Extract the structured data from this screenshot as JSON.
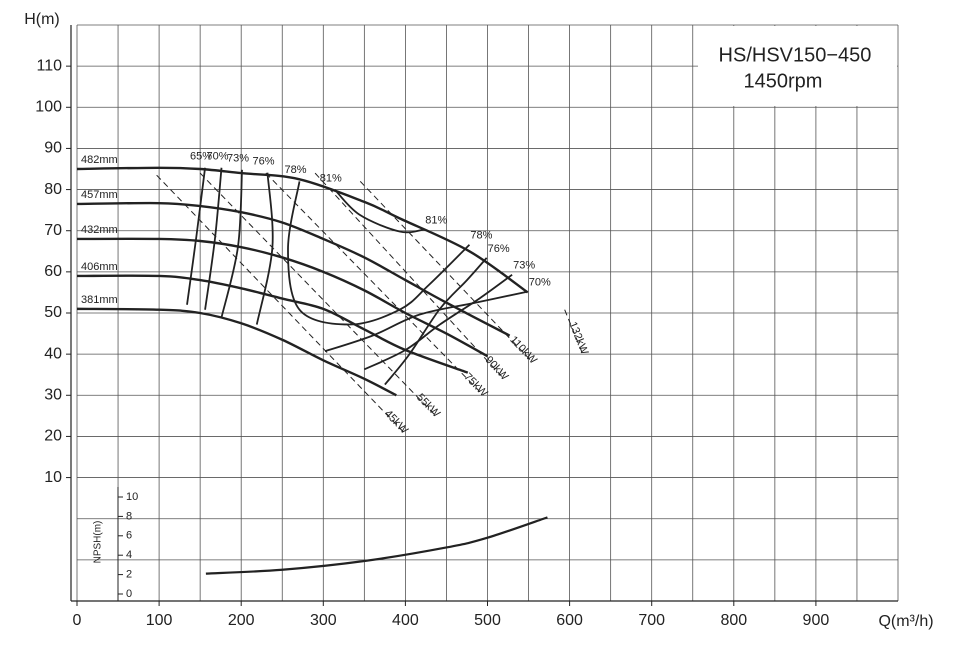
{
  "chart_data": {
    "type": "line",
    "title": "HS/HSV150−450",
    "subtitle": "1450rpm",
    "x_label": "Q(m³/h)",
    "y_label": "H(m)",
    "xlim": [
      0,
      1000
    ],
    "xticks": [
      0,
      100,
      200,
      300,
      400,
      500,
      600,
      700,
      800,
      900
    ],
    "ylim": [
      -20,
      120
    ],
    "yticks": [
      10,
      20,
      30,
      40,
      50,
      60,
      70,
      80,
      90,
      100,
      110
    ],
    "xgrid": [
      0,
      50,
      100,
      150,
      200,
      250,
      300,
      350,
      400,
      450,
      500,
      550,
      600,
      650,
      700,
      750,
      800,
      850,
      900,
      950,
      1000
    ],
    "ygrid": [
      -20,
      -10,
      0,
      10,
      20,
      30,
      40,
      50,
      60,
      70,
      80,
      90,
      100,
      110,
      120
    ],
    "color": "#222222",
    "grid_color": "#555555",
    "series": [
      {
        "name": "482mm",
        "x": [
          0,
          100,
          150,
          200,
          271,
          350,
          393,
          478,
          549
        ],
        "values": [
          85,
          85.3,
          85,
          84,
          82.5,
          77,
          73,
          65,
          55
        ]
      },
      {
        "name": "457mm",
        "x": [
          0,
          100,
          150,
          200,
          250,
          300,
          350,
          400,
          450,
          527
        ],
        "values": [
          76.5,
          76.7,
          76,
          74.5,
          72,
          68,
          63.5,
          58,
          52.5,
          44.5
        ]
      },
      {
        "name": "432mm",
        "x": [
          0,
          100,
          150,
          200,
          250,
          300,
          350,
          400,
          450,
          500
        ],
        "values": [
          68,
          68,
          67.5,
          66,
          63.5,
          60,
          55.5,
          50,
          45,
          39.5
        ]
      },
      {
        "name": "406mm",
        "x": [
          0,
          100,
          150,
          200,
          250,
          300,
          350,
          400,
          476
        ],
        "values": [
          59,
          59,
          58,
          56,
          53.5,
          51,
          46,
          41,
          35.5
        ]
      },
      {
        "name": "381mm",
        "x": [
          0,
          100,
          150,
          200,
          250,
          300,
          350,
          389
        ],
        "values": [
          51,
          50.8,
          50,
          47.5,
          43.5,
          38.5,
          34,
          30
        ]
      }
    ],
    "efficiency": [
      {
        "name": "65%",
        "x": [
          156,
          145,
          134
        ],
        "values": [
          85.3,
          68,
          52
        ]
      },
      {
        "name": "70%",
        "x": [
          176,
          168,
          156,
          null,
          302,
          360,
          417,
          485,
          549
        ],
        "values": [
          85.3,
          68,
          50.8,
          null,
          40.7,
          44.5,
          49.6,
          52.5,
          55.2
        ]
      },
      {
        "name": "73%",
        "x": [
          201,
          196,
          176,
          null,
          350,
          400,
          442,
          490,
          530
        ],
        "values": [
          84.8,
          66,
          48.9,
          null,
          36.3,
          41,
          47.2,
          53.5,
          59.3
        ]
      },
      {
        "name": "76%",
        "x": [
          232,
          238,
          219,
          null,
          375,
          405,
          442,
          475,
          499
        ],
        "values": [
          84.1,
          66,
          47.2,
          null,
          32.6,
          40,
          51,
          58,
          63.4
        ]
      },
      {
        "name": "78%",
        "x": [
          271,
          257,
          271,
          332,
          393,
          429,
          478
        ],
        "values": [
          82,
          65.5,
          50.8,
          47.2,
          50.8,
          56.9,
          66.6
        ]
      },
      {
        "name": "81%",
        "x": [
          314,
          344,
          393,
          423
        ],
        "values": [
          80,
          73.9,
          69.8,
          70.3
        ]
      }
    ],
    "power": [
      {
        "name": "45kW",
        "x": [
          97,
          398
        ],
        "values": [
          83.5,
          21
        ]
      },
      {
        "name": "55kW",
        "x": [
          150,
          437
        ],
        "values": [
          84,
          25
        ]
      },
      {
        "name": "75kW",
        "x": [
          230,
          495
        ],
        "values": [
          84,
          30
        ]
      },
      {
        "name": "90kW",
        "x": [
          290,
          520
        ],
        "values": [
          84,
          34
        ]
      },
      {
        "name": "110kW",
        "x": [
          345,
          555
        ],
        "values": [
          82,
          38
        ]
      },
      {
        "name": "132kW",
        "x": [
          594,
          616
        ],
        "values": [
          50.8,
          40
        ]
      }
    ],
    "npsh": {
      "label": "NPSH(m)",
      "ylim": [
        0,
        10
      ],
      "yticks": [
        0,
        2,
        4,
        6,
        8,
        10
      ],
      "x": [
        157,
        250,
        350,
        450,
        500,
        573
      ],
      "values": [
        2.1,
        2.5,
        3.4,
        4.8,
        5.8,
        7.9
      ]
    }
  }
}
